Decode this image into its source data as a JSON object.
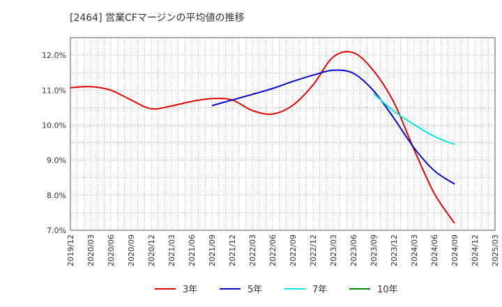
{
  "chart_data": {
    "type": "line",
    "title": "[2464]  営業CFマージンの平均値の推移",
    "xlabel": "",
    "ylabel": "",
    "ylim": [
      7.0,
      12.5
    ],
    "yticks": [
      7.0,
      8.0,
      9.0,
      10.0,
      11.0,
      12.0
    ],
    "ytick_labels": [
      "7.0%",
      "8.0%",
      "9.0%",
      "10.0%",
      "11.0%",
      "12.0%"
    ],
    "xtick_labels": [
      "2019/12",
      "2020/03",
      "2020/06",
      "2020/09",
      "2020/12",
      "2021/03",
      "2021/06",
      "2021/09",
      "2021/12",
      "2022/03",
      "2022/06",
      "2022/09",
      "2022/12",
      "2023/03",
      "2023/06",
      "2023/09",
      "2023/12",
      "2024/03",
      "2024/06",
      "2024/09",
      "2024/12",
      "2025/03"
    ],
    "grid": true,
    "legend_position": "bottom",
    "series": [
      {
        "name": "3年",
        "color": "#e00000",
        "points": [
          [
            0,
            11.07
          ],
          [
            1,
            11.1
          ],
          [
            2,
            11.0
          ],
          [
            3,
            10.72
          ],
          [
            4,
            10.47
          ],
          [
            5,
            10.55
          ],
          [
            6,
            10.68
          ],
          [
            7,
            10.76
          ],
          [
            8,
            10.72
          ],
          [
            9,
            10.42
          ],
          [
            10,
            10.32
          ],
          [
            11,
            10.57
          ],
          [
            12,
            11.15
          ],
          [
            13,
            11.95
          ],
          [
            14,
            12.07
          ],
          [
            15,
            11.55
          ],
          [
            16,
            10.65
          ],
          [
            17,
            9.3
          ],
          [
            18,
            8.05
          ],
          [
            19,
            7.2
          ]
        ]
      },
      {
        "name": "5年",
        "color": "#0000cc",
        "points": [
          [
            7,
            10.56
          ],
          [
            8,
            10.72
          ],
          [
            9,
            10.88
          ],
          [
            10,
            11.05
          ],
          [
            11,
            11.25
          ],
          [
            12,
            11.43
          ],
          [
            13,
            11.57
          ],
          [
            14,
            11.48
          ],
          [
            15,
            10.98
          ],
          [
            16,
            10.2
          ],
          [
            17,
            9.35
          ],
          [
            18,
            8.7
          ],
          [
            19,
            8.32
          ]
        ]
      },
      {
        "name": "7年",
        "color": "#00e5e5",
        "points": [
          [
            15,
            10.9
          ],
          [
            16,
            10.4
          ],
          [
            17,
            10.02
          ],
          [
            18,
            9.68
          ],
          [
            19,
            9.45
          ]
        ]
      },
      {
        "name": "10年",
        "color": "#008000",
        "points": []
      }
    ]
  }
}
